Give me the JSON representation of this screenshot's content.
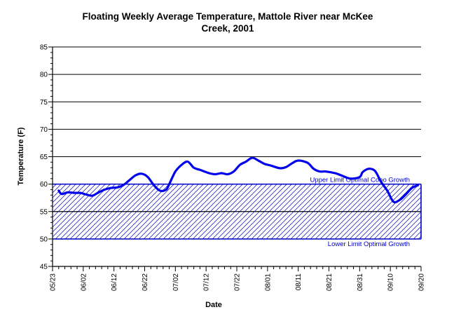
{
  "chart_data": {
    "type": "line",
    "title_lines": [
      "Floating Weekly Average Temperature, Mattole River near McKee",
      "Creek, 2001"
    ],
    "xlabel": "Date",
    "ylabel": "Temperature (F)",
    "ylim": [
      45,
      85
    ],
    "yticks": [
      45,
      50,
      55,
      60,
      65,
      70,
      75,
      80,
      85
    ],
    "xlim": [
      "2001-05-23",
      "2001-09-20"
    ],
    "xticks": [
      "05/23",
      "06/02",
      "06/12",
      "06/22",
      "07/02",
      "07/12",
      "07/22",
      "08/01",
      "08/11",
      "08/21",
      "08/31",
      "09/10",
      "09/20"
    ],
    "grid": "horizontal",
    "colors": {
      "line": "#0000ee",
      "band": "#0000cc",
      "grid": "#000000"
    },
    "band": {
      "upper": 60,
      "lower": 50,
      "middle": 55,
      "fill": "hatched"
    },
    "annotations": [
      {
        "text": "Upper Limit Optimal Coho Growth",
        "y": 60
      },
      {
        "text": "Lower Limit Optimal Growth",
        "y": 50
      }
    ],
    "series": [
      {
        "x": [
          "2001-05-25",
          "2001-05-26",
          "2001-05-28",
          "2001-05-30",
          "2001-06-01",
          "2001-06-03",
          "2001-06-05",
          "2001-06-07",
          "2001-06-09",
          "2001-06-11",
          "2001-06-13",
          "2001-06-15",
          "2001-06-17",
          "2001-06-19",
          "2001-06-21",
          "2001-06-23",
          "2001-06-25",
          "2001-06-27",
          "2001-06-29",
          "2001-06-30",
          "2001-07-02",
          "2001-07-04",
          "2001-07-06",
          "2001-07-08",
          "2001-07-10",
          "2001-07-13",
          "2001-07-15",
          "2001-07-17",
          "2001-07-19",
          "2001-07-21",
          "2001-07-23",
          "2001-07-25",
          "2001-07-27",
          "2001-07-29",
          "2001-07-31",
          "2001-08-02",
          "2001-08-05",
          "2001-08-07",
          "2001-08-09",
          "2001-08-11",
          "2001-08-14",
          "2001-08-16",
          "2001-08-18",
          "2001-08-20",
          "2001-08-23",
          "2001-08-25",
          "2001-08-28",
          "2001-08-31",
          "2001-09-01",
          "2001-09-03",
          "2001-09-05",
          "2001-09-07",
          "2001-09-09",
          "2001-09-11",
          "2001-09-13",
          "2001-09-15",
          "2001-09-17",
          "2001-09-19"
        ],
        "values": [
          58.8,
          58.2,
          58.5,
          58.4,
          58.4,
          58.1,
          57.9,
          58.5,
          59.0,
          59.3,
          59.4,
          59.8,
          60.7,
          61.6,
          61.9,
          61.3,
          59.8,
          58.8,
          59.0,
          60.0,
          62.3,
          63.5,
          64.1,
          63.0,
          62.6,
          62.0,
          61.8,
          62.0,
          61.8,
          62.3,
          63.5,
          64.1,
          64.8,
          64.3,
          63.7,
          63.4,
          62.9,
          63.1,
          63.8,
          64.3,
          63.9,
          62.8,
          62.3,
          62.3,
          62.0,
          61.6,
          61.0,
          61.3,
          62.2,
          62.8,
          62.4,
          60.4,
          58.8,
          56.8,
          57.1,
          58.1,
          59.3,
          59.8
        ]
      }
    ]
  }
}
